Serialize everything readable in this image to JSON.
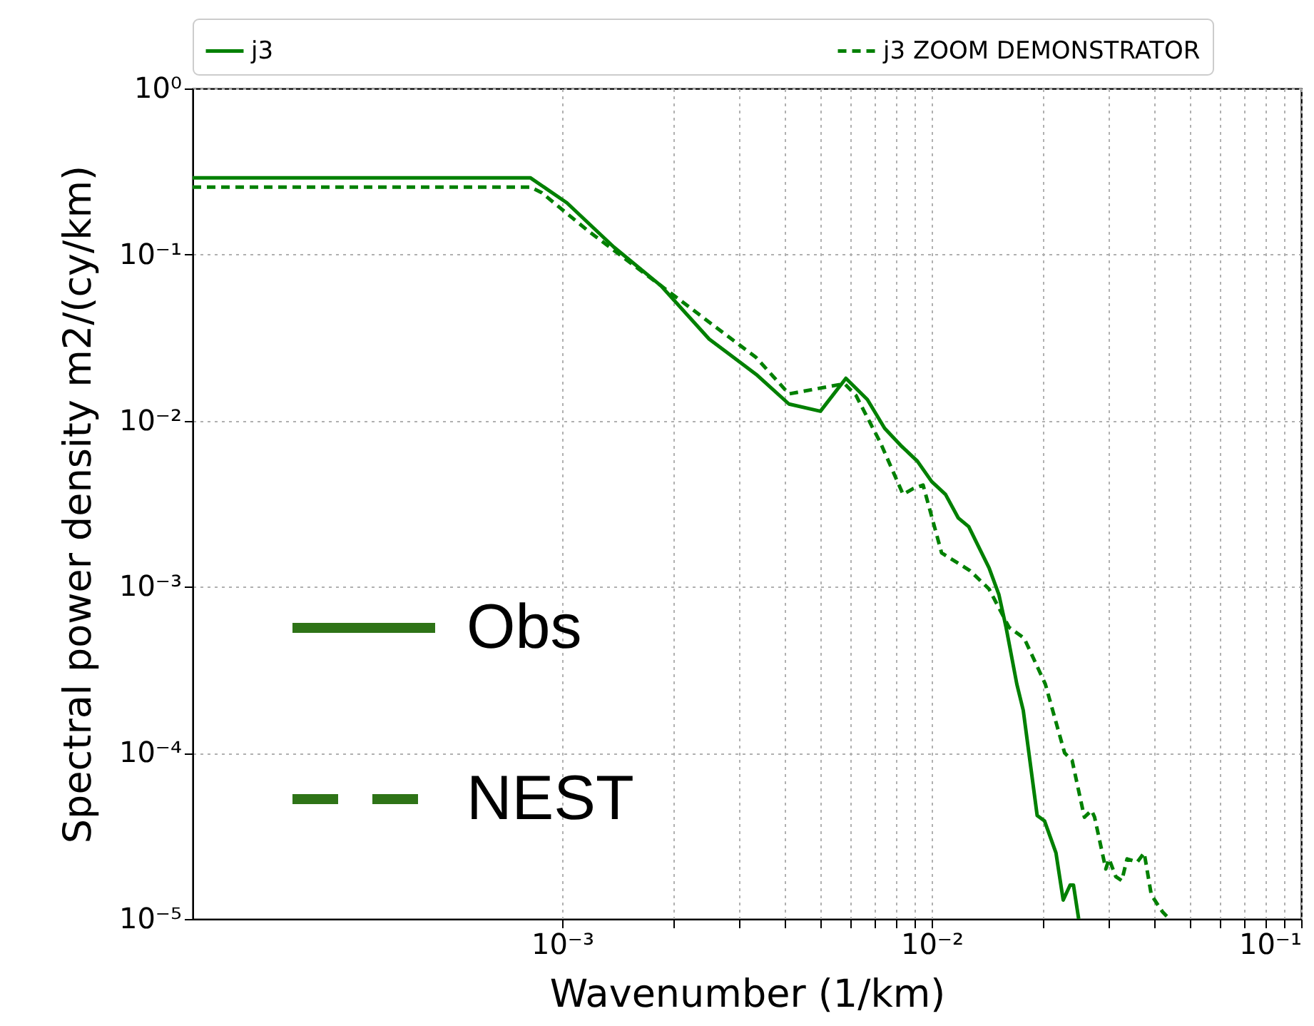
{
  "chart_data": {
    "type": "line",
    "xlabel": "Wavenumber (1/km)",
    "ylabel": "Spectral power density m2/(cy/km)",
    "log": "xy",
    "grid": true,
    "legend": "top",
    "marker": "none",
    "xlim": [
      0.0001,
      0.1
    ],
    "ylim": [
      1e-05,
      1
    ],
    "xticks": [
      {
        "value": 0.001,
        "label": "10⁻³"
      },
      {
        "value": 0.002,
        "label": null
      },
      {
        "value": 0.003,
        "label": null
      },
      {
        "value": 0.004,
        "label": null
      },
      {
        "value": 0.005,
        "label": null
      },
      {
        "value": 0.006,
        "label": null
      },
      {
        "value": 0.007,
        "label": null
      },
      {
        "value": 0.008,
        "label": null
      },
      {
        "value": 0.009,
        "label": null
      },
      {
        "value": 0.01,
        "label": "10⁻²"
      },
      {
        "value": 0.02,
        "label": null
      },
      {
        "value": 0.03,
        "label": null
      },
      {
        "value": 0.04,
        "label": null
      },
      {
        "value": 0.05,
        "label": null
      },
      {
        "value": 0.06,
        "label": null
      },
      {
        "value": 0.07,
        "label": null
      },
      {
        "value": 0.08,
        "label": null
      },
      {
        "value": 0.09,
        "label": null
      },
      {
        "value": 0.1,
        "label": "10⁻¹"
      }
    ],
    "yticks": [
      {
        "value": 1e-05,
        "label": "10⁻⁵"
      },
      {
        "value": 0.0001,
        "label": "10⁻⁴"
      },
      {
        "value": 0.001,
        "label": "10⁻³"
      },
      {
        "value": 0.01,
        "label": "10⁻²"
      },
      {
        "value": 0.1,
        "label": "10⁻¹"
      },
      {
        "value": 1,
        "label": "10⁰"
      }
    ],
    "annotations": [
      "Obs",
      "NEST"
    ],
    "series": [
      {
        "name": "j3",
        "color": "#008000",
        "line_style": "solid",
        "x": [
          0.0001,
          0.00082,
          0.00103,
          0.00138,
          0.00185,
          0.0025,
          0.00335,
          0.00411,
          0.005,
          0.00586,
          0.0067,
          0.00746,
          0.0083,
          0.00915,
          0.01,
          0.0109,
          0.0118,
          0.0126,
          0.0143,
          0.0152,
          0.0159,
          0.017,
          0.0177,
          0.0193,
          0.0202,
          0.0217,
          0.0227,
          0.0237,
          0.0242,
          0.025
        ],
        "values": [
          0.29,
          0.29,
          0.205,
          0.111,
          0.065,
          0.031,
          0.019,
          0.0126,
          0.0114,
          0.018,
          0.0134,
          0.009,
          0.007,
          0.0057,
          0.0043,
          0.0036,
          0.0026,
          0.0023,
          0.0013,
          0.0009,
          0.00057,
          0.00026,
          0.00018,
          4.2e-05,
          3.9e-05,
          2.5e-05,
          1.3e-05,
          1.6e-05,
          1.6e-05,
          1e-05
        ]
      },
      {
        "name": "j3 ZOOM DEMONSTRATOR",
        "color": "#008000",
        "line_style": "dashed",
        "x": [
          0.0001,
          0.00082,
          0.00088,
          0.00118,
          0.00185,
          0.00335,
          0.00411,
          0.00581,
          0.00624,
          0.00726,
          0.00837,
          0.00891,
          0.00948,
          0.01064,
          0.0127,
          0.0143,
          0.0162,
          0.0178,
          0.0203,
          0.0229,
          0.024,
          0.0259,
          0.0271,
          0.0276,
          0.0296,
          0.0302,
          0.0315,
          0.0327,
          0.0338,
          0.036,
          0.0376,
          0.0393,
          0.0411,
          0.0422,
          0.044
        ],
        "values": [
          0.255,
          0.255,
          0.236,
          0.138,
          0.065,
          0.024,
          0.0145,
          0.0167,
          0.0142,
          0.0074,
          0.0036,
          0.0039,
          0.0041,
          0.0016,
          0.00125,
          0.00097,
          0.00057,
          0.00049,
          0.00026,
          0.0001,
          9e-05,
          4.1e-05,
          4.5e-05,
          4.1e-05,
          2e-05,
          2.3e-05,
          1.8e-05,
          1.7e-05,
          2.3e-05,
          2.2e-05,
          2.5e-05,
          1.4e-05,
          1.2e-05,
          1.1e-05,
          1e-05
        ]
      }
    ]
  }
}
